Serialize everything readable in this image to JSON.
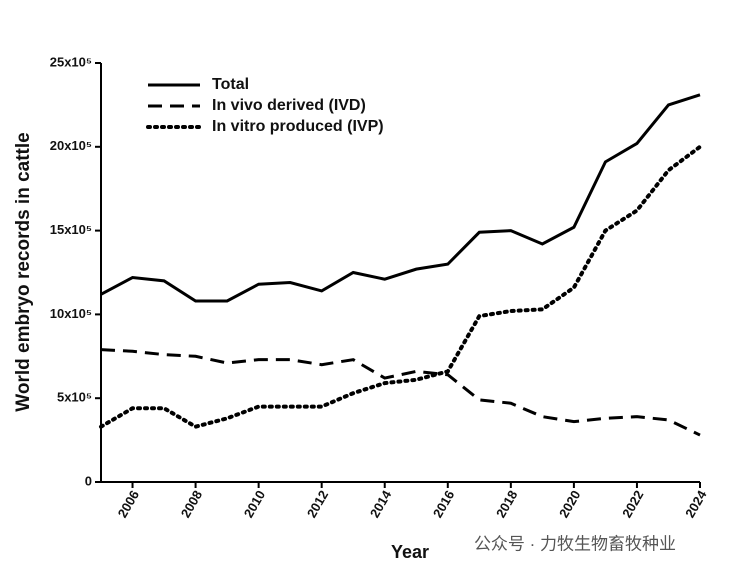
{
  "chart_data": {
    "type": "line",
    "x_label": "Year",
    "y_label": "World embryo records in cattle",
    "x": [
      2005,
      2006,
      2007,
      2008,
      2009,
      2010,
      2011,
      2012,
      2013,
      2014,
      2015,
      2016,
      2017,
      2018,
      2019,
      2020,
      2021,
      2022,
      2023,
      2024
    ],
    "series": [
      {
        "name": "Total",
        "color": "#000000",
        "style": "solid",
        "values": [
          1120000,
          1220000,
          1200000,
          1080000,
          1080000,
          1180000,
          1190000,
          1140000,
          1250000,
          1210000,
          1270000,
          1300000,
          1490000,
          1500000,
          1420000,
          1520000,
          1910000,
          2020000,
          2250000,
          2310000
        ]
      },
      {
        "name": "In vivo derived (IVD)",
        "color": "#000000",
        "style": "dashed",
        "values": [
          790000,
          780000,
          760000,
          750000,
          710000,
          730000,
          730000,
          700000,
          730000,
          620000,
          660000,
          640000,
          490000,
          470000,
          390000,
          360000,
          380000,
          390000,
          370000,
          280000
        ]
      },
      {
        "name": "In vitro produced (IVP)",
        "color": "#000000",
        "style": "dotted",
        "values": [
          330000,
          440000,
          440000,
          330000,
          380000,
          450000,
          450000,
          450000,
          530000,
          590000,
          610000,
          660000,
          990000,
          1020000,
          1030000,
          1160000,
          1500000,
          1620000,
          1860000,
          2000000
        ]
      }
    ],
    "xlim": [
      2005,
      2024
    ],
    "xticks": [
      2006,
      2008,
      2010,
      2012,
      2014,
      2016,
      2018,
      2020,
      2022,
      2024
    ],
    "ylim": [
      0,
      2500000
    ],
    "yticks": [
      0,
      {
        "value": 500000,
        "label": "5x10⁵"
      },
      {
        "value": 1000000,
        "label": "10x10⁵"
      },
      {
        "value": 1500000,
        "label": "15x10⁵"
      },
      {
        "value": 2000000,
        "label": "20x10⁵"
      },
      {
        "value": 2500000,
        "label": "25x10⁵"
      }
    ],
    "legend": "top-left",
    "grid": false
  },
  "watermark": "公众号 · 力牧生物畜牧种业"
}
